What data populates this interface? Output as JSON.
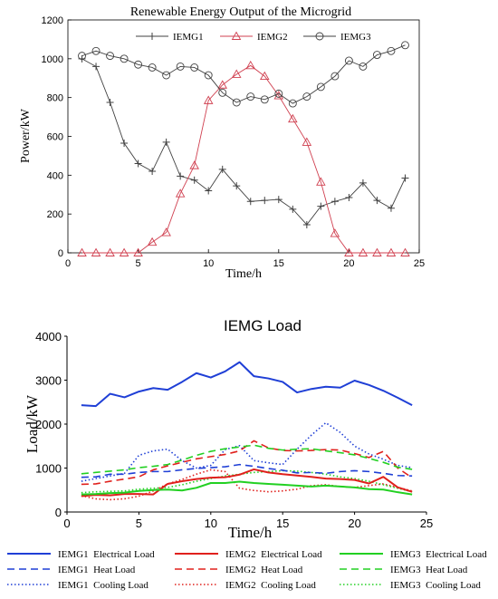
{
  "chart_data": [
    {
      "type": "line",
      "title": "Renewable Energy Output of the Microgrid",
      "xlabel": "Time/h",
      "ylabel": "Power/kW",
      "xlim": [
        0,
        25
      ],
      "ylim": [
        0,
        1200
      ],
      "xticks": [
        "0",
        "5",
        "10",
        "15",
        "20",
        "25"
      ],
      "yticks": [
        "0",
        "200",
        "400",
        "600",
        "800",
        "1000",
        "1200"
      ],
      "legend_position": "top",
      "x": [
        1,
        2,
        3,
        4,
        5,
        6,
        7,
        8,
        9,
        10,
        11,
        12,
        13,
        14,
        15,
        16,
        17,
        18,
        19,
        20,
        21,
        22,
        23,
        24
      ],
      "series": [
        {
          "name": "IEMG1",
          "marker": "plus",
          "color": "#404040",
          "values": [
            1000,
            960,
            775,
            565,
            460,
            420,
            570,
            395,
            375,
            320,
            430,
            345,
            265,
            270,
            275,
            225,
            145,
            240,
            265,
            285,
            360,
            270,
            230,
            385
          ]
        },
        {
          "name": "IEMG2",
          "marker": "triangle",
          "color": "#d04050",
          "values": [
            0,
            0,
            0,
            0,
            0,
            55,
            105,
            305,
            450,
            785,
            865,
            920,
            965,
            910,
            810,
            690,
            570,
            365,
            100,
            0,
            0,
            0,
            0,
            0
          ]
        },
        {
          "name": "IEMG3",
          "marker": "circle",
          "color": "#404040",
          "values": [
            1015,
            1040,
            1015,
            1000,
            970,
            955,
            915,
            960,
            955,
            915,
            825,
            775,
            805,
            790,
            820,
            770,
            805,
            855,
            910,
            990,
            960,
            1020,
            1040,
            1070
          ]
        }
      ]
    },
    {
      "type": "line",
      "title": "IEMG Load",
      "xlabel": "Time/h",
      "ylabel": "Load/kW",
      "xlim": [
        0,
        25
      ],
      "ylim": [
        0,
        4000
      ],
      "xticks": [
        "0",
        "5",
        "10",
        "15",
        "20",
        "25"
      ],
      "yticks": [
        "0",
        "1000",
        "2000",
        "3000",
        "4000"
      ],
      "legend_position": "bottom",
      "x": [
        1,
        2,
        3,
        4,
        5,
        6,
        7,
        8,
        9,
        10,
        11,
        12,
        13,
        14,
        15,
        16,
        17,
        18,
        19,
        20,
        21,
        22,
        23,
        24
      ],
      "series": [
        {
          "name": "IEMG1  Electrical Load",
          "color": "#1f3fd6",
          "dash": "solid",
          "values": [
            2430,
            2410,
            2690,
            2610,
            2740,
            2820,
            2780,
            2960,
            3160,
            3060,
            3200,
            3410,
            3090,
            3040,
            2960,
            2720,
            2800,
            2850,
            2830,
            2990,
            2890,
            2760,
            2600,
            2430
          ]
        },
        {
          "name": "IEMG2  Electrical Load",
          "color": "#e0201c",
          "dash": "solid",
          "values": [
            360,
            390,
            380,
            410,
            410,
            400,
            640,
            700,
            750,
            780,
            790,
            850,
            970,
            900,
            860,
            830,
            800,
            760,
            750,
            730,
            650,
            800,
            560,
            460
          ]
        },
        {
          "name": "IEMG3  Electrical Load",
          "color": "#22d022",
          "dash": "solid",
          "values": [
            400,
            410,
            430,
            440,
            480,
            500,
            510,
            490,
            550,
            660,
            660,
            690,
            660,
            640,
            620,
            600,
            580,
            600,
            580,
            560,
            520,
            510,
            450,
            400
          ]
        },
        {
          "name": "IEMG1  Heat Load",
          "color": "#1f3fd6",
          "dash": "dash",
          "values": [
            790,
            800,
            860,
            860,
            900,
            920,
            920,
            960,
            990,
            1010,
            1030,
            1080,
            1040,
            990,
            950,
            890,
            900,
            880,
            920,
            940,
            920,
            880,
            830,
            820
          ]
        },
        {
          "name": "IEMG2  Heat Load",
          "color": "#e0201c",
          "dash": "dash",
          "values": [
            630,
            640,
            700,
            750,
            800,
            960,
            1050,
            1130,
            1210,
            1260,
            1310,
            1390,
            1620,
            1460,
            1400,
            1390,
            1400,
            1420,
            1410,
            1330,
            1240,
            1380,
            1000,
            780
          ]
        },
        {
          "name": "IEMG3  Heat Load",
          "color": "#22d022",
          "dash": "dash",
          "values": [
            870,
            900,
            930,
            960,
            1010,
            1040,
            1080,
            1180,
            1290,
            1380,
            1440,
            1480,
            1520,
            1450,
            1410,
            1430,
            1440,
            1390,
            1350,
            1300,
            1220,
            1130,
            1020,
            970
          ]
        },
        {
          "name": "IEMG1  Cooling Load",
          "color": "#1f3fd6",
          "dash": "dot",
          "values": [
            700,
            760,
            820,
            880,
            1290,
            1390,
            1430,
            1170,
            1000,
            1060,
            1420,
            1510,
            1170,
            1120,
            1080,
            1430,
            1750,
            2030,
            1810,
            1500,
            1320,
            1200,
            1060,
            1010
          ]
        },
        {
          "name": "IEMG2  Cooling Load",
          "color": "#e0201c",
          "dash": "dot",
          "values": [
            370,
            300,
            280,
            300,
            360,
            480,
            640,
            740,
            860,
            960,
            920,
            540,
            490,
            460,
            480,
            520,
            600,
            620,
            580,
            560,
            600,
            640,
            560,
            480
          ]
        },
        {
          "name": "IEMG3  Cooling Load",
          "color": "#22d022",
          "dash": "dot",
          "values": [
            440,
            460,
            470,
            480,
            520,
            540,
            560,
            620,
            700,
            760,
            820,
            860,
            900,
            920,
            940,
            930,
            900,
            860,
            800,
            760,
            700,
            620,
            540,
            460
          ]
        }
      ]
    }
  ]
}
